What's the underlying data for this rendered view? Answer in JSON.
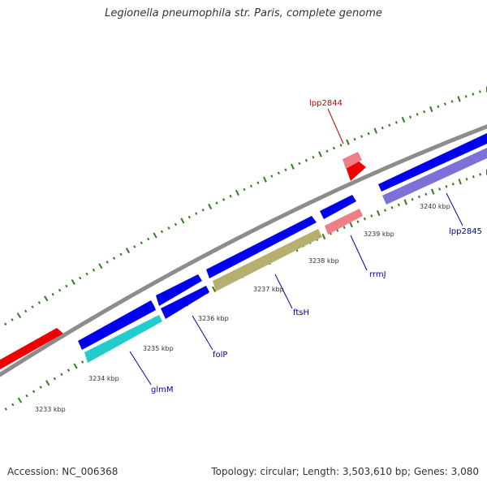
{
  "title": "Legionella pneumophila str. Paris, complete genome",
  "footer": {
    "accession": "Accession: NC_006368",
    "topology": "Topology: circular; Length: 3,503,610 bp; Genes: 3,080"
  },
  "colors": {
    "backbone": "#8c8c8c",
    "tick_major": "#2f7d1f",
    "tick_minor": "#2f7d1f",
    "gene_blue": "#0000ee",
    "gene_red": "#ee0000",
    "gene_pink": "#ee7f86",
    "gene_cyan": "#22cccc",
    "gene_olive": "#b5b070",
    "gene_purple": "#7a72d6",
    "label_red": "#cc0000",
    "label_blue": "#0000aa"
  },
  "tick_labels": [
    "3233 kbp",
    "3234 kbp",
    "3235 kbp",
    "3236 kbp",
    "3237 kbp",
    "3238 kbp",
    "3239 kbp",
    "3240 kbp"
  ],
  "gene_labels": [
    {
      "text": "lpp2844",
      "color": "red"
    },
    {
      "text": "glmM",
      "color": "blue"
    },
    {
      "text": "folP",
      "color": "blue"
    },
    {
      "text": "ftsH",
      "color": "blue"
    },
    {
      "text": "rrmJ",
      "color": "blue"
    },
    {
      "text": "lpp2845",
      "color": "blue"
    }
  ]
}
